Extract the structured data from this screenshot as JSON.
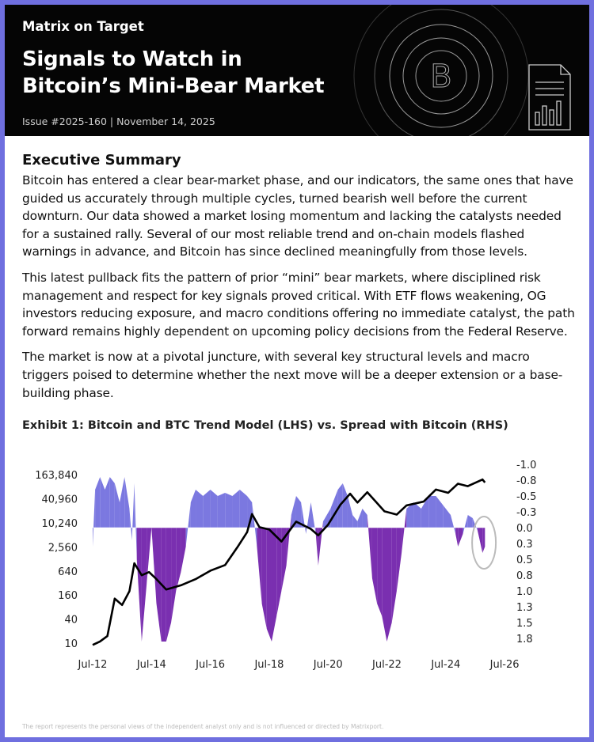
{
  "header": {
    "brand": "Matrix on Target",
    "title_line1": "Signals to Watch in",
    "title_line2": "Bitcoin’s Mini-Bear Market",
    "issue": "Issue #2025-160 | November 14, 2025",
    "icons": [
      "bitcoin-rings-icon",
      "report-chart-icon"
    ]
  },
  "summary": {
    "heading": "Executive Summary",
    "paragraphs": [
      "Bitcoin has entered a clear bear-market phase, and our indicators, the same ones that have guided us accurately through multiple cycles, turned bearish well before the current downturn. Our data showed a market losing momentum and lacking the catalysts needed for a sustained rally. Several of our most reliable trend and on-chain models flashed warnings in advance, and Bitcoin has since declined meaningfully from those levels.",
      "This latest pullback fits the pattern of prior “mini” bear markets, where disciplined risk management and respect for key signals proved critical. With ETF flows weakening, OG investors reducing exposure, and macro conditions offering no immediate catalyst, the path forward remains highly dependent on upcoming policy decisions from the Federal Reserve.",
      "The market is now at a pivotal juncture, with several key structural levels and macro triggers poised to determine whether the next move will be a deeper extension or a base-building phase."
    ]
  },
  "exhibit_title": "Exhibit 1: Bitcoin and BTC Trend Model (LHS) vs. Spread with Bitcoin (RHS)",
  "chart_data": {
    "type": "line+area",
    "left_axis": {
      "scale": "log",
      "ticks": [
        "10",
        "40",
        "160",
        "640",
        "2,560",
        "10,240",
        "40,960",
        "163,840"
      ],
      "values": [
        10,
        40,
        160,
        640,
        2560,
        10240,
        40960,
        163840
      ]
    },
    "right_axis": {
      "inverted": true,
      "ticks": [
        "-1.0",
        "-0.8",
        "-0.5",
        "-0.3",
        "0.0",
        "0.3",
        "0.5",
        "0.8",
        "1.0",
        "1.3",
        "1.5",
        "1.8"
      ],
      "range": [
        -1.0,
        1.8
      ]
    },
    "x_ticks": [
      "Jul-12",
      "Jul-14",
      "Jul-16",
      "Jul-18",
      "Jul-20",
      "Jul-22",
      "Jul-24",
      "Jul-26"
    ],
    "colors": {
      "price": "#000000",
      "spread_negative": "#7b78e0",
      "spread_positive": "#7a2fb0",
      "annotation": "#bbbbbb"
    },
    "price": [
      [
        "2012-07",
        9
      ],
      [
        "2012-10",
        11
      ],
      [
        "2013-01",
        15
      ],
      [
        "2013-04",
        130
      ],
      [
        "2013-07",
        90
      ],
      [
        "2013-10",
        200
      ],
      [
        "2013-12",
        1000
      ],
      [
        "2014-03",
        500
      ],
      [
        "2014-06",
        600
      ],
      [
        "2014-09",
        400
      ],
      [
        "2015-01",
        220
      ],
      [
        "2015-07",
        280
      ],
      [
        "2016-01",
        400
      ],
      [
        "2016-07",
        650
      ],
      [
        "2017-01",
        900
      ],
      [
        "2017-06",
        2500
      ],
      [
        "2017-10",
        6000
      ],
      [
        "2017-12",
        17000
      ],
      [
        "2018-03",
        8000
      ],
      [
        "2018-07",
        7000
      ],
      [
        "2018-12",
        3500
      ],
      [
        "2019-06",
        11000
      ],
      [
        "2019-12",
        7200
      ],
      [
        "2020-03",
        5000
      ],
      [
        "2020-07",
        9200
      ],
      [
        "2020-12",
        29000
      ],
      [
        "2021-04",
        55000
      ],
      [
        "2021-07",
        33000
      ],
      [
        "2021-11",
        60000
      ],
      [
        "2022-06",
        20000
      ],
      [
        "2022-11",
        16500
      ],
      [
        "2023-03",
        28000
      ],
      [
        "2023-10",
        35000
      ],
      [
        "2024-03",
        70000
      ],
      [
        "2024-08",
        58000
      ],
      [
        "2024-12",
        98000
      ],
      [
        "2025-04",
        85000
      ],
      [
        "2025-10",
        125000
      ],
      [
        "2025-11",
        105000
      ]
    ],
    "spread": [
      [
        "2012-07",
        0.3
      ],
      [
        "2012-08",
        -0.6
      ],
      [
        "2012-10",
        -0.8
      ],
      [
        "2012-12",
        -0.6
      ],
      [
        "2013-02",
        -0.8
      ],
      [
        "2013-04",
        -0.7
      ],
      [
        "2013-06",
        -0.4
      ],
      [
        "2013-08",
        -0.8
      ],
      [
        "2013-10",
        -0.3
      ],
      [
        "2013-11",
        0.2
      ],
      [
        "2013-12",
        -0.7
      ],
      [
        "2014-01",
        0.5
      ],
      [
        "2014-03",
        1.8
      ],
      [
        "2014-05",
        0.9
      ],
      [
        "2014-07",
        0.0
      ],
      [
        "2014-09",
        1.2
      ],
      [
        "2014-11",
        1.8
      ],
      [
        "2015-01",
        1.8
      ],
      [
        "2015-03",
        1.5
      ],
      [
        "2015-05",
        1.0
      ],
      [
        "2015-07",
        0.7
      ],
      [
        "2015-09",
        0.3
      ],
      [
        "2015-11",
        -0.4
      ],
      [
        "2016-01",
        -0.6
      ],
      [
        "2016-04",
        -0.5
      ],
      [
        "2016-07",
        -0.6
      ],
      [
        "2016-10",
        -0.5
      ],
      [
        "2017-01",
        -0.55
      ],
      [
        "2017-04",
        -0.5
      ],
      [
        "2017-07",
        -0.6
      ],
      [
        "2017-10",
        -0.5
      ],
      [
        "2017-12",
        -0.4
      ],
      [
        "2018-02",
        0.3
      ],
      [
        "2018-04",
        1.2
      ],
      [
        "2018-06",
        1.6
      ],
      [
        "2018-08",
        1.8
      ],
      [
        "2018-10",
        1.4
      ],
      [
        "2018-12",
        1.0
      ],
      [
        "2019-02",
        0.6
      ],
      [
        "2019-04",
        -0.2
      ],
      [
        "2019-06",
        -0.5
      ],
      [
        "2019-08",
        -0.4
      ],
      [
        "2019-10",
        0.1
      ],
      [
        "2019-12",
        -0.4
      ],
      [
        "2020-02",
        0.1
      ],
      [
        "2020-03",
        0.6
      ],
      [
        "2020-05",
        -0.1
      ],
      [
        "2020-08",
        -0.3
      ],
      [
        "2020-11",
        -0.6
      ],
      [
        "2021-01",
        -0.7
      ],
      [
        "2021-03",
        -0.5
      ],
      [
        "2021-05",
        -0.2
      ],
      [
        "2021-07",
        -0.1
      ],
      [
        "2021-09",
        -0.3
      ],
      [
        "2021-11",
        -0.2
      ],
      [
        "2022-01",
        0.8
      ],
      [
        "2022-03",
        1.2
      ],
      [
        "2022-05",
        1.4
      ],
      [
        "2022-07",
        1.8
      ],
      [
        "2022-09",
        1.5
      ],
      [
        "2022-11",
        1.0
      ],
      [
        "2023-01",
        0.4
      ],
      [
        "2023-03",
        -0.3
      ],
      [
        "2023-06",
        -0.4
      ],
      [
        "2023-09",
        -0.3
      ],
      [
        "2023-12",
        -0.5
      ],
      [
        "2024-03",
        -0.5
      ],
      [
        "2024-06",
        -0.35
      ],
      [
        "2024-09",
        -0.2
      ],
      [
        "2024-11",
        0.1
      ],
      [
        "2024-12",
        0.3
      ],
      [
        "2025-02",
        0.1
      ],
      [
        "2025-04",
        -0.2
      ],
      [
        "2025-06",
        -0.15
      ],
      [
        "2025-08",
        0.05
      ],
      [
        "2025-10",
        0.4
      ],
      [
        "2025-11",
        0.3
      ]
    ]
  },
  "footer": "The report represents the personal views of the independent analyst only and is not influenced or directed by Matrixport."
}
